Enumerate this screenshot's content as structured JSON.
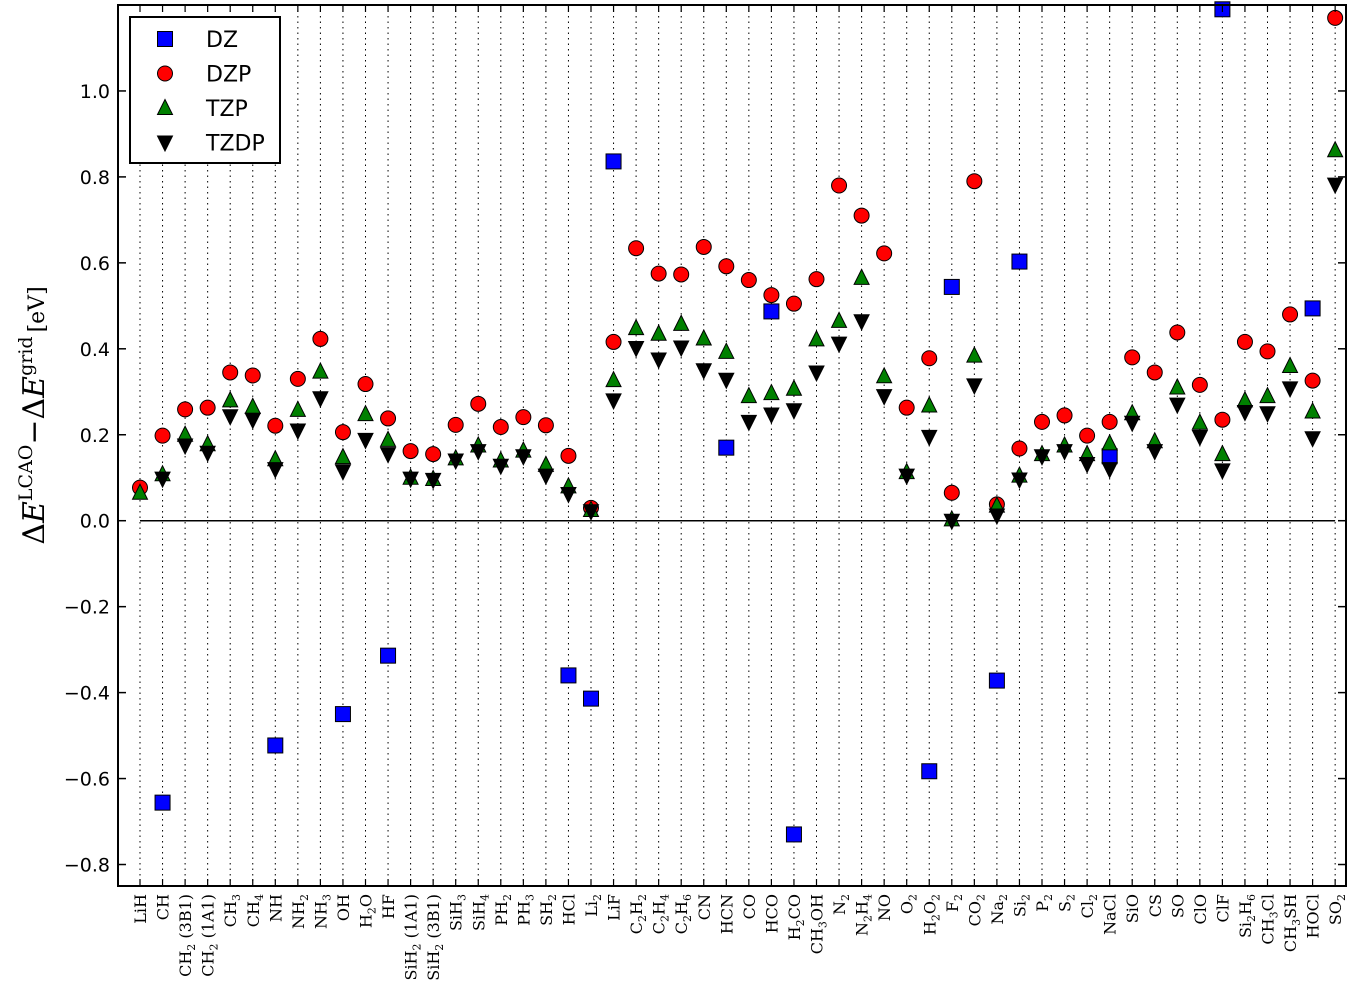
{
  "chart_data": {
    "type": "scatter",
    "title": "",
    "xlabel": "",
    "ylabel": "ΔE^LCAO − ΔE^grid [eV]",
    "ylabel_parts": {
      "d1": "Δ",
      "e1": "E",
      "sup1": "LCAO",
      "minus": "−",
      "d2": "Δ",
      "e2": "E",
      "sup2": "grid",
      "unit": "[eV]"
    },
    "ylim": [
      -0.85,
      1.2
    ],
    "yticks": [
      -0.8,
      -0.6,
      -0.4,
      -0.2,
      0.0,
      0.2,
      0.4,
      0.6,
      0.8,
      1.0
    ],
    "ytick_labels": [
      "−0.8",
      "−0.6",
      "−0.4",
      "−0.2",
      "0.0",
      "0.2",
      "0.4",
      "0.6",
      "0.8",
      "1.0"
    ],
    "grid": "vertical-dotted",
    "legend_position": "top-left",
    "categories": [
      "LiH",
      "CH",
      "CH2 (3B1)",
      "CH2 (1A1)",
      "CH3",
      "CH4",
      "NH",
      "NH2",
      "NH3",
      "OH",
      "H2O",
      "HF",
      "SiH2 (1A1)",
      "SiH2 (3B1)",
      "SiH3",
      "SiH4",
      "PH2",
      "PH3",
      "SH2",
      "HCl",
      "Li2",
      "LiF",
      "C2H2",
      "C2H4",
      "C2H6",
      "CN",
      "HCN",
      "CO",
      "HCO",
      "H2CO",
      "CH3OH",
      "N2",
      "N2H4",
      "NO",
      "O2",
      "H2O2",
      "F2",
      "CO2",
      "Na2",
      "Si2",
      "P2",
      "S2",
      "Cl2",
      "NaCl",
      "SiO",
      "CS",
      "SO",
      "ClO",
      "ClF",
      "Si2H6",
      "CH3Cl",
      "CH3SH",
      "HOCl",
      "SO2"
    ],
    "category_labels": [
      [
        [
          "LiH",
          0
        ]
      ],
      [
        [
          "CH",
          0
        ]
      ],
      [
        [
          "CH",
          0
        ],
        [
          "2",
          1
        ],
        [
          " (3B1)",
          0
        ]
      ],
      [
        [
          "CH",
          0
        ],
        [
          "2",
          1
        ],
        [
          " (1A1)",
          0
        ]
      ],
      [
        [
          "CH",
          0
        ],
        [
          "3",
          1
        ]
      ],
      [
        [
          "CH",
          0
        ],
        [
          "4",
          1
        ]
      ],
      [
        [
          "NH",
          0
        ]
      ],
      [
        [
          "NH",
          0
        ],
        [
          "2",
          1
        ]
      ],
      [
        [
          "NH",
          0
        ],
        [
          "3",
          1
        ]
      ],
      [
        [
          "OH",
          0
        ]
      ],
      [
        [
          "H",
          0
        ],
        [
          "2",
          1
        ],
        [
          "O",
          0
        ]
      ],
      [
        [
          "HF",
          0
        ]
      ],
      [
        [
          "SiH",
          0
        ],
        [
          "2",
          1
        ],
        [
          " (1A1)",
          0
        ]
      ],
      [
        [
          "SiH",
          0
        ],
        [
          "2",
          1
        ],
        [
          " (3B1)",
          0
        ]
      ],
      [
        [
          "SiH",
          0
        ],
        [
          "3",
          1
        ]
      ],
      [
        [
          "SiH",
          0
        ],
        [
          "4",
          1
        ]
      ],
      [
        [
          "PH",
          0
        ],
        [
          "2",
          1
        ]
      ],
      [
        [
          "PH",
          0
        ],
        [
          "3",
          1
        ]
      ],
      [
        [
          "SH",
          0
        ],
        [
          "2",
          1
        ]
      ],
      [
        [
          "HCl",
          0
        ]
      ],
      [
        [
          "Li",
          0
        ],
        [
          "2",
          1
        ]
      ],
      [
        [
          "LiF",
          0
        ]
      ],
      [
        [
          "C",
          0
        ],
        [
          "2",
          1
        ],
        [
          "H",
          0
        ],
        [
          "2",
          1
        ]
      ],
      [
        [
          "C",
          0
        ],
        [
          "2",
          1
        ],
        [
          "H",
          0
        ],
        [
          "4",
          1
        ]
      ],
      [
        [
          "C",
          0
        ],
        [
          "2",
          1
        ],
        [
          "H",
          0
        ],
        [
          "6",
          1
        ]
      ],
      [
        [
          "CN",
          0
        ]
      ],
      [
        [
          "HCN",
          0
        ]
      ],
      [
        [
          "CO",
          0
        ]
      ],
      [
        [
          "HCO",
          0
        ]
      ],
      [
        [
          "H",
          0
        ],
        [
          "2",
          1
        ],
        [
          "CO",
          0
        ]
      ],
      [
        [
          "CH",
          0
        ],
        [
          "3",
          1
        ],
        [
          "OH",
          0
        ]
      ],
      [
        [
          "N",
          0
        ],
        [
          "2",
          1
        ]
      ],
      [
        [
          "N",
          0
        ],
        [
          "2",
          1
        ],
        [
          "H",
          0
        ],
        [
          "4",
          1
        ]
      ],
      [
        [
          "NO",
          0
        ]
      ],
      [
        [
          "O",
          0
        ],
        [
          "2",
          1
        ]
      ],
      [
        [
          "H",
          0
        ],
        [
          "2",
          1
        ],
        [
          "O",
          0
        ],
        [
          "2",
          1
        ]
      ],
      [
        [
          "F",
          0
        ],
        [
          "2",
          1
        ]
      ],
      [
        [
          "CO",
          0
        ],
        [
          "2",
          1
        ]
      ],
      [
        [
          "Na",
          0
        ],
        [
          "2",
          1
        ]
      ],
      [
        [
          "Si",
          0
        ],
        [
          "2",
          1
        ]
      ],
      [
        [
          "P",
          0
        ],
        [
          "2",
          1
        ]
      ],
      [
        [
          "S",
          0
        ],
        [
          "2",
          1
        ]
      ],
      [
        [
          "Cl",
          0
        ],
        [
          "2",
          1
        ]
      ],
      [
        [
          "NaCl",
          0
        ]
      ],
      [
        [
          "SiO",
          0
        ]
      ],
      [
        [
          "CS",
          0
        ]
      ],
      [
        [
          "SO",
          0
        ]
      ],
      [
        [
          "ClO",
          0
        ]
      ],
      [
        [
          "ClF",
          0
        ]
      ],
      [
        [
          "Si",
          0
        ],
        [
          "2",
          1
        ],
        [
          "H",
          0
        ],
        [
          "6",
          1
        ]
      ],
      [
        [
          "CH",
          0
        ],
        [
          "3",
          1
        ],
        [
          "Cl",
          0
        ]
      ],
      [
        [
          "CH",
          0
        ],
        [
          "3",
          1
        ],
        [
          "SH",
          0
        ]
      ],
      [
        [
          "HOCl",
          0
        ]
      ],
      [
        [
          "SO",
          0
        ],
        [
          "2",
          1
        ]
      ]
    ],
    "series": [
      {
        "name": "DZ",
        "marker": "square",
        "color": "#0000ff",
        "values": [
          null,
          -0.656,
          null,
          null,
          null,
          null,
          -0.523,
          null,
          null,
          -0.45,
          null,
          -0.314,
          null,
          null,
          null,
          null,
          null,
          null,
          null,
          -0.36,
          -0.414,
          0.836,
          null,
          null,
          null,
          null,
          0.17,
          null,
          0.487,
          -0.73,
          null,
          null,
          null,
          null,
          null,
          -0.583,
          0.544,
          null,
          -0.372,
          0.603,
          null,
          null,
          null,
          0.15,
          null,
          null,
          null,
          null,
          1.19,
          null,
          null,
          null,
          0.494,
          null
        ]
      },
      {
        "name": "DZP",
        "marker": "circle",
        "color": "#ff0000",
        "values": [
          0.077,
          0.198,
          0.259,
          0.263,
          0.345,
          0.338,
          0.221,
          0.33,
          0.423,
          0.206,
          0.318,
          0.238,
          0.162,
          0.155,
          0.223,
          0.272,
          0.218,
          0.241,
          0.222,
          0.151,
          0.03,
          0.416,
          0.634,
          0.575,
          0.573,
          0.637,
          0.592,
          0.56,
          0.525,
          0.505,
          0.562,
          0.78,
          0.71,
          0.622,
          0.263,
          0.378,
          0.065,
          0.79,
          0.038,
          0.168,
          0.23,
          0.245,
          0.198,
          0.23,
          0.38,
          0.345,
          0.438,
          0.316,
          0.235,
          0.416,
          0.394,
          0.48,
          0.326,
          1.17
        ]
      },
      {
        "name": "TZP",
        "marker": "triangle-up",
        "color": "#008000",
        "values": [
          0.065,
          0.108,
          0.2,
          0.178,
          0.28,
          0.265,
          0.143,
          0.258,
          0.347,
          0.148,
          0.248,
          0.188,
          0.1,
          0.097,
          0.145,
          0.175,
          0.14,
          0.163,
          0.13,
          0.08,
          0.025,
          0.327,
          0.448,
          0.435,
          0.458,
          0.424,
          0.393,
          0.29,
          0.297,
          0.307,
          0.422,
          0.465,
          0.565,
          0.336,
          0.113,
          0.268,
          0.003,
          0.384,
          0.035,
          0.105,
          0.155,
          0.175,
          0.155,
          0.18,
          0.25,
          0.185,
          0.31,
          0.228,
          0.155,
          0.28,
          0.29,
          0.36,
          0.254,
          0.862
        ]
      },
      {
        "name": "TZDP",
        "marker": "triangle-down",
        "color": "#000000",
        "values": [
          null,
          0.098,
          0.175,
          0.158,
          0.243,
          0.235,
          0.12,
          0.21,
          0.285,
          0.115,
          0.188,
          0.155,
          0.098,
          0.095,
          0.14,
          0.162,
          0.128,
          0.15,
          0.105,
          0.062,
          0.022,
          0.28,
          0.402,
          0.375,
          0.403,
          0.35,
          0.328,
          0.23,
          0.247,
          0.257,
          0.345,
          0.412,
          0.464,
          0.29,
          0.105,
          0.195,
          0.0,
          0.315,
          0.012,
          0.096,
          0.15,
          0.162,
          0.132,
          0.12,
          0.228,
          0.162,
          0.27,
          0.195,
          0.117,
          0.253,
          0.25,
          0.308,
          0.192,
          0.782
        ]
      }
    ]
  }
}
